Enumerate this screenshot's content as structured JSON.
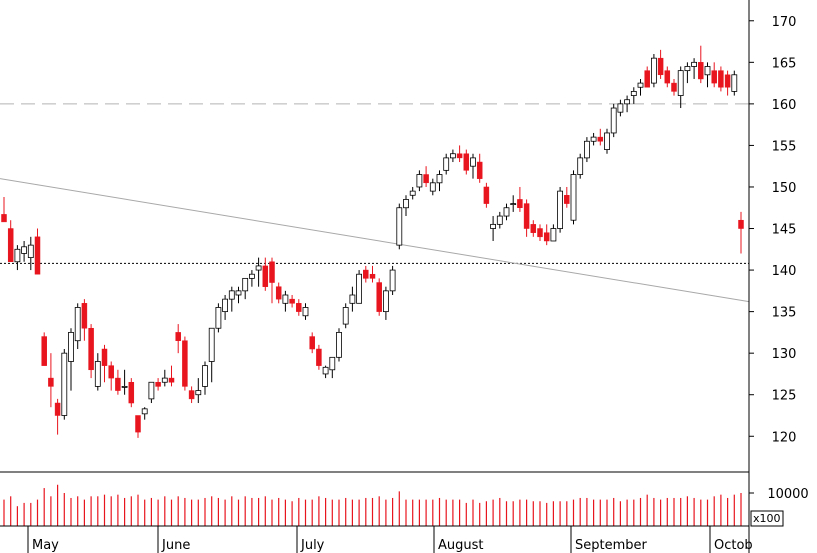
{
  "chart_data": {
    "type": "candlestick",
    "price_axis": {
      "ylim": [
        115.7,
        172.5
      ],
      "ticks": [
        120,
        125,
        130,
        135,
        140,
        145,
        150,
        155,
        160,
        165,
        170
      ],
      "position": "right"
    },
    "volume_axis": {
      "ticks": [
        10000
      ],
      "unit_label": "x100"
    },
    "x_axis": {
      "month_labels": [
        "May",
        "June",
        "July",
        "August",
        "September",
        "Octob"
      ]
    },
    "grid": false,
    "reference_lines": [
      {
        "kind": "horizontal",
        "style": "dashed",
        "value": 160
      },
      {
        "kind": "horizontal",
        "style": "dotted",
        "value": 140.8
      },
      {
        "kind": "trendline",
        "style": "solid",
        "from_value": 151.0,
        "to_value": 136.2
      }
    ],
    "colors": {
      "up": "#ffffff",
      "up_outline": "#000000",
      "down": "#e8141e",
      "volume": "#e8141e",
      "dashed_line": "#b4b4b4",
      "trendline": "#a8a8a8"
    },
    "candles": [
      [
        146.7,
        148.8,
        146.0,
        145.8
      ],
      [
        145.0,
        146.0,
        141.0,
        141.0
      ],
      [
        141.0,
        143.0,
        140.0,
        142.5
      ],
      [
        142.0,
        143.5,
        141.0,
        142.8
      ],
      [
        141.5,
        144.0,
        140.0,
        143.0
      ],
      [
        144.0,
        145.0,
        139.5,
        139.5
      ],
      [
        132.0,
        132.5,
        128.5,
        128.5
      ],
      [
        127.0,
        130.0,
        123.5,
        126.0
      ],
      [
        124.0,
        124.5,
        120.2,
        122.5
      ],
      [
        122.5,
        130.5,
        122.0,
        130.0
      ],
      [
        129.0,
        133.0,
        125.5,
        132.5
      ],
      [
        131.5,
        136.0,
        130.5,
        135.5
      ],
      [
        136.0,
        136.5,
        131.5,
        133.0
      ],
      [
        133.0,
        133.5,
        127.0,
        128.0
      ],
      [
        126.0,
        130.0,
        125.5,
        129.0
      ],
      [
        130.5,
        131.0,
        126.5,
        128.5
      ],
      [
        128.5,
        129.0,
        125.5,
        127.0
      ],
      [
        127.0,
        128.0,
        125.0,
        125.5
      ],
      [
        126.0,
        128.0,
        125.0,
        126.0
      ],
      [
        126.5,
        127.0,
        123.5,
        124.0
      ],
      [
        122.5,
        122.5,
        119.8,
        120.5
      ],
      [
        122.7,
        123.5,
        122.0,
        123.3
      ],
      [
        124.5,
        126.5,
        124.0,
        126.5
      ],
      [
        126.5,
        127.0,
        125.5,
        126.0
      ],
      [
        126.5,
        128.0,
        126.0,
        127.0
      ],
      [
        127.0,
        128.5,
        126.0,
        126.5
      ],
      [
        132.5,
        133.5,
        130.0,
        131.5
      ],
      [
        131.5,
        132.0,
        125.5,
        126.0
      ],
      [
        125.5,
        126.0,
        124.0,
        124.5
      ],
      [
        125.0,
        127.0,
        124.0,
        125.5
      ],
      [
        126.0,
        129.0,
        125.0,
        128.5
      ],
      [
        129.0,
        133.0,
        126.5,
        133.0
      ],
      [
        133.0,
        136.0,
        132.5,
        135.5
      ],
      [
        135.0,
        137.0,
        134.0,
        136.5
      ],
      [
        136.5,
        138.0,
        135.0,
        137.5
      ],
      [
        137.0,
        138.0,
        136.0,
        137.5
      ],
      [
        137.5,
        139.0,
        136.5,
        139.0
      ],
      [
        139.0,
        140.0,
        138.0,
        139.5
      ],
      [
        140.0,
        141.5,
        138.0,
        140.5
      ],
      [
        140.5,
        141.5,
        137.5,
        138.0
      ],
      [
        141.0,
        141.5,
        136.0,
        138.5
      ],
      [
        138.0,
        138.5,
        136.0,
        136.5
      ],
      [
        136.0,
        137.5,
        135.0,
        137.0
      ],
      [
        136.5,
        137.0,
        135.5,
        136.0
      ],
      [
        136.0,
        136.5,
        134.5,
        135.0
      ],
      [
        134.5,
        136.0,
        134.0,
        135.5
      ],
      [
        132.0,
        132.5,
        130.0,
        130.5
      ],
      [
        130.5,
        131.0,
        128.0,
        128.5
      ],
      [
        127.5,
        128.5,
        127.0,
        128.3
      ],
      [
        128.0,
        129.5,
        127.0,
        129.5
      ],
      [
        129.5,
        133.0,
        129.0,
        132.5
      ],
      [
        133.5,
        136.0,
        133.0,
        135.5
      ],
      [
        136.0,
        138.0,
        135.0,
        137.0
      ],
      [
        136.0,
        140.0,
        136.0,
        139.5
      ],
      [
        140.0,
        140.5,
        138.5,
        139.0
      ],
      [
        139.5,
        140.5,
        138.5,
        139.0
      ],
      [
        138.5,
        139.0,
        134.5,
        135.0
      ],
      [
        135.0,
        138.0,
        134.0,
        137.5
      ],
      [
        137.5,
        140.5,
        137.0,
        140.0
      ],
      [
        143.0,
        148.0,
        142.5,
        147.5
      ],
      [
        147.5,
        149.0,
        146.5,
        148.5
      ],
      [
        149.0,
        150.0,
        148.5,
        149.5
      ],
      [
        150.0,
        152.0,
        149.5,
        151.5
      ],
      [
        151.5,
        152.5,
        150.0,
        150.5
      ],
      [
        149.5,
        151.0,
        149.0,
        150.5
      ],
      [
        150.5,
        152.0,
        149.5,
        151.5
      ],
      [
        152.0,
        154.0,
        151.5,
        153.5
      ],
      [
        153.5,
        154.5,
        153.0,
        154.0
      ],
      [
        154.0,
        155.0,
        153.0,
        153.5
      ],
      [
        154.0,
        154.5,
        151.5,
        152.0
      ],
      [
        152.5,
        154.0,
        151.0,
        153.5
      ],
      [
        153.0,
        154.0,
        150.5,
        151.0
      ],
      [
        150.0,
        150.5,
        147.5,
        148.0
      ],
      [
        145.0,
        146.5,
        143.5,
        145.5
      ],
      [
        145.5,
        147.0,
        145.0,
        146.5
      ],
      [
        146.5,
        148.0,
        146.0,
        147.5
      ],
      [
        148.0,
        149.0,
        147.0,
        148.0
      ],
      [
        148.5,
        150.0,
        147.0,
        147.5
      ],
      [
        148.0,
        148.5,
        144.0,
        145.0
      ],
      [
        145.5,
        146.0,
        144.0,
        144.5
      ],
      [
        145.0,
        145.5,
        143.5,
        144.0
      ],
      [
        144.5,
        145.5,
        143.0,
        143.5
      ],
      [
        143.5,
        145.5,
        143.5,
        145.0
      ],
      [
        145.0,
        150.0,
        144.5,
        149.5
      ],
      [
        149.0,
        150.0,
        147.5,
        148.0
      ],
      [
        146.0,
        152.0,
        145.5,
        151.5
      ],
      [
        151.5,
        154.0,
        151.0,
        153.5
      ],
      [
        153.5,
        156.0,
        153.0,
        155.5
      ],
      [
        155.5,
        156.5,
        155.0,
        156.0
      ],
      [
        156.0,
        157.0,
        155.0,
        155.5
      ],
      [
        154.5,
        157.0,
        154.0,
        156.5
      ],
      [
        156.5,
        160.0,
        156.0,
        159.5
      ],
      [
        159.0,
        160.5,
        158.5,
        160.0
      ],
      [
        160.0,
        161.0,
        159.0,
        160.5
      ],
      [
        161.0,
        162.0,
        160.0,
        161.5
      ],
      [
        162.0,
        163.0,
        161.0,
        162.5
      ],
      [
        164.0,
        164.5,
        162.0,
        162.0
      ],
      [
        162.5,
        166.0,
        162.0,
        165.5
      ],
      [
        165.5,
        166.5,
        163.0,
        163.5
      ],
      [
        164.0,
        164.5,
        162.0,
        162.5
      ],
      [
        162.5,
        163.0,
        161.0,
        161.5
      ],
      [
        161.0,
        164.5,
        159.5,
        164.0
      ],
      [
        164.0,
        165.0,
        162.5,
        164.5
      ],
      [
        164.5,
        165.5,
        163.0,
        165.0
      ],
      [
        165.0,
        167.0,
        162.5,
        163.0
      ],
      [
        163.5,
        165.0,
        162.0,
        164.5
      ],
      [
        164.0,
        165.0,
        162.0,
        162.5
      ],
      [
        164.0,
        164.5,
        161.5,
        162.0
      ],
      [
        163.5,
        164.0,
        161.0,
        162.0
      ],
      [
        161.5,
        164.0,
        161.0,
        163.5
      ],
      [
        146.0,
        147.0,
        142.0,
        145.0
      ]
    ],
    "volume": [
      [
        0,
        8000
      ],
      [
        1,
        9000
      ],
      [
        2,
        6000
      ],
      [
        3,
        7000
      ],
      [
        4,
        7000
      ],
      [
        5,
        8000
      ],
      [
        6,
        11500
      ],
      [
        7,
        9000
      ],
      [
        8,
        12500
      ],
      [
        9,
        10000
      ],
      [
        10,
        8500
      ],
      [
        11,
        9000
      ],
      [
        12,
        8000
      ],
      [
        13,
        9000
      ],
      [
        14,
        9000
      ],
      [
        15,
        9500
      ],
      [
        16,
        9000
      ],
      [
        17,
        9500
      ],
      [
        18,
        8500
      ],
      [
        19,
        9000
      ],
      [
        20,
        9500
      ],
      [
        21,
        8000
      ],
      [
        22,
        8500
      ],
      [
        23,
        8000
      ],
      [
        24,
        9000
      ],
      [
        25,
        8000
      ],
      [
        26,
        9000
      ],
      [
        27,
        8500
      ],
      [
        28,
        8000
      ],
      [
        29,
        8000
      ],
      [
        30,
        8500
      ],
      [
        31,
        9000
      ],
      [
        32,
        8500
      ],
      [
        33,
        8000
      ],
      [
        34,
        9000
      ],
      [
        35,
        8000
      ],
      [
        36,
        9000
      ],
      [
        37,
        8500
      ],
      [
        38,
        8500
      ],
      [
        39,
        9000
      ],
      [
        40,
        8000
      ],
      [
        41,
        8500
      ],
      [
        42,
        8000
      ],
      [
        43,
        7500
      ],
      [
        44,
        8500
      ],
      [
        45,
        8000
      ],
      [
        46,
        8000
      ],
      [
        47,
        9000
      ],
      [
        48,
        8500
      ],
      [
        49,
        8000
      ],
      [
        50,
        8000
      ],
      [
        51,
        8500
      ],
      [
        52,
        8000
      ],
      [
        53,
        8000
      ],
      [
        54,
        8500
      ],
      [
        55,
        8500
      ],
      [
        56,
        9000
      ],
      [
        57,
        8000
      ],
      [
        58,
        8500
      ],
      [
        59,
        10500
      ],
      [
        60,
        8000
      ],
      [
        61,
        8000
      ],
      [
        62,
        8000
      ],
      [
        63,
        8000
      ],
      [
        64,
        8000
      ],
      [
        65,
        8500
      ],
      [
        66,
        8000
      ],
      [
        67,
        8000
      ],
      [
        68,
        8000
      ],
      [
        69,
        7000
      ],
      [
        70,
        8000
      ],
      [
        71,
        7000
      ],
      [
        72,
        7500
      ],
      [
        73,
        8000
      ],
      [
        74,
        8500
      ],
      [
        75,
        7500
      ],
      [
        76,
        7500
      ],
      [
        77,
        8000
      ],
      [
        78,
        8000
      ],
      [
        79,
        7500
      ],
      [
        80,
        7500
      ],
      [
        81,
        7000
      ],
      [
        82,
        7500
      ],
      [
        83,
        7500
      ],
      [
        84,
        7500
      ],
      [
        85,
        8000
      ],
      [
        86,
        8500
      ],
      [
        87,
        8500
      ],
      [
        88,
        8000
      ],
      [
        89,
        8000
      ],
      [
        90,
        8000
      ],
      [
        91,
        8500
      ],
      [
        92,
        7500
      ],
      [
        93,
        8000
      ],
      [
        94,
        8000
      ],
      [
        95,
        8500
      ],
      [
        96,
        9500
      ],
      [
        97,
        8500
      ],
      [
        98,
        8000
      ],
      [
        99,
        8500
      ],
      [
        100,
        8500
      ],
      [
        101,
        8500
      ],
      [
        102,
        9000
      ],
      [
        103,
        8500
      ],
      [
        104,
        8000
      ],
      [
        105,
        8000
      ],
      [
        106,
        9000
      ],
      [
        107,
        9500
      ],
      [
        108,
        8500
      ],
      [
        109,
        9500
      ],
      [
        110,
        10000
      ]
    ]
  }
}
